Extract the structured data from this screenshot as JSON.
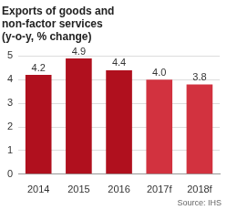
{
  "chart_data": {
    "type": "bar",
    "title": [
      "Exports of goods and",
      "non-factor services",
      "(y-o-y, % change)"
    ],
    "categories": [
      "2014",
      "2015",
      "2016",
      "2017f",
      "2018f"
    ],
    "values": [
      4.2,
      4.9,
      4.4,
      4,
      3.8
    ],
    "value_labels": [
      "4.2",
      "4.9",
      "4.4",
      "4.0",
      "3.8"
    ],
    "colors": [
      "#b0101e",
      "#b0101e",
      "#b0101e",
      "#d2323f",
      "#d2323f"
    ],
    "ylim": [
      0,
      5
    ],
    "yticks": [
      0,
      1,
      2,
      3,
      4,
      5
    ],
    "grid": true,
    "data_labels": true,
    "annotations": [
      "Source: IHS"
    ]
  }
}
